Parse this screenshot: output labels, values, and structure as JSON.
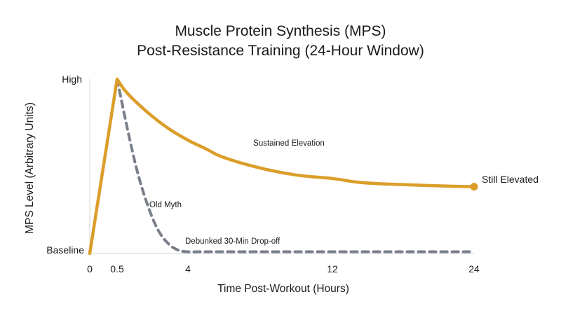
{
  "chart_data": {
    "type": "line",
    "title": "Muscle Protein Synthesis (MPS)",
    "subtitle": "Post-Resistance Training (24-Hour Window)",
    "xlabel": "Time Post-Workout (Hours)",
    "ylabel": "MPS Level (Arbitrary Units)",
    "x_ticks": [
      "0",
      "0.5",
      "4",
      "12",
      "24"
    ],
    "y_ticks": [
      "Baseline",
      "High"
    ],
    "ylim": [
      0,
      1
    ],
    "grid": false,
    "colors": {
      "sustained": "#DB9E2A",
      "myth": "#7A808A",
      "axis": "#D4D4D4"
    },
    "series": [
      {
        "key": "sustained",
        "style": "solid",
        "x": [
          0,
          0.5,
          1,
          2,
          3,
          4,
          5,
          6,
          8,
          10,
          12,
          14,
          16,
          18,
          20,
          22,
          24
        ],
        "y": [
          0,
          1.0,
          0.92,
          0.81,
          0.72,
          0.65,
          0.6,
          0.55,
          0.49,
          0.45,
          0.43,
          0.41,
          0.4,
          0.395,
          0.39,
          0.386,
          0.383
        ]
      },
      {
        "key": "myth",
        "style": "dashed",
        "x": [
          0.5,
          1,
          1.5,
          2,
          2.5,
          3,
          3.5,
          4,
          5,
          8,
          12,
          16,
          20,
          24
        ],
        "y": [
          1.0,
          0.72,
          0.47,
          0.28,
          0.14,
          0.06,
          0.02,
          0.01,
          0.01,
          0.01,
          0.01,
          0.01,
          0.01,
          0.01
        ]
      }
    ],
    "annotations": {
      "sustained": "Sustained Elevation",
      "myth_label": "Old Myth",
      "myth_dropoff": "Debunked 30-Min Drop-off",
      "end": "Still Elevated"
    }
  }
}
